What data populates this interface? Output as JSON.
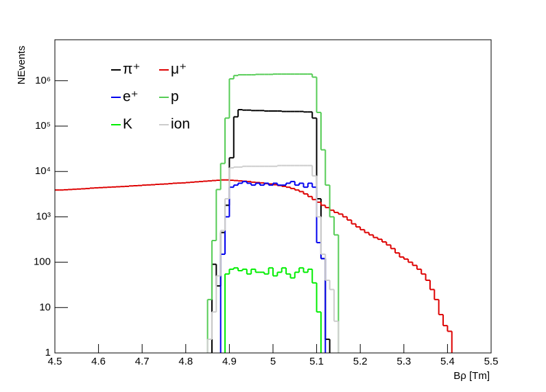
{
  "chart_data": {
    "type": "histogram",
    "xlabel": "Bρ [Tm]",
    "ylabel": "NEvents",
    "xlim": [
      4.5,
      5.5
    ],
    "xticks": [
      4.5,
      4.6,
      4.7,
      4.8,
      4.9,
      5,
      5.1,
      5.2,
      5.3,
      5.4,
      5.5
    ],
    "ylim": [
      1,
      8000000
    ],
    "yticks": [
      1,
      10,
      100,
      {
        "value": 1000,
        "label": "10³"
      },
      {
        "value": 10000,
        "label": "10⁴"
      },
      {
        "value": 100000,
        "label": "10⁵"
      },
      {
        "value": 1000000,
        "label": "10⁶"
      }
    ],
    "log_y": true,
    "legend": "upper left",
    "series": [
      {
        "name": "π⁺",
        "color": "#000000",
        "bins": [
          4.86,
          4.87,
          4.88,
          4.89,
          4.9,
          4.91,
          4.92,
          4.93,
          4.94,
          4.95,
          4.96,
          4.97,
          4.98,
          4.99,
          5,
          5.01,
          5.02,
          5.03,
          5.04,
          5.05,
          5.06,
          5.07,
          5.08,
          5.09,
          5.1,
          5.11,
          5.12,
          5.13
        ],
        "values": [
          90,
          30,
          450,
          1800,
          20000,
          160000,
          230000,
          225000,
          225000,
          220000,
          220000,
          220000,
          215000,
          215000,
          215000,
          215000,
          210000,
          210000,
          210000,
          210000,
          210000,
          205000,
          205000,
          150000,
          2500,
          120,
          2
        ]
      },
      {
        "name": "μ⁺",
        "color": "#dd0000",
        "bins": [
          4.5,
          4.51,
          4.52,
          4.53,
          4.54,
          4.55,
          4.56,
          4.57,
          4.58,
          4.59,
          4.6,
          4.61,
          4.62,
          4.63,
          4.64,
          4.65,
          4.66,
          4.67,
          4.68,
          4.69,
          4.7,
          4.71,
          4.72,
          4.73,
          4.74,
          4.75,
          4.76,
          4.77,
          4.78,
          4.79,
          4.8,
          4.81,
          4.82,
          4.83,
          4.84,
          4.85,
          4.86,
          4.87,
          4.88,
          4.89,
          4.9,
          4.91,
          4.92,
          4.93,
          4.94,
          4.95,
          4.96,
          4.97,
          4.98,
          4.99,
          5,
          5.01,
          5.02,
          5.03,
          5.04,
          5.05,
          5.06,
          5.07,
          5.08,
          5.09,
          5.1,
          5.11,
          5.12,
          5.13,
          5.14,
          5.15,
          5.16,
          5.17,
          5.18,
          5.19,
          5.2,
          5.21,
          5.22,
          5.23,
          5.24,
          5.25,
          5.26,
          5.27,
          5.28,
          5.29,
          5.3,
          5.31,
          5.32,
          5.33,
          5.34,
          5.35,
          5.36,
          5.37,
          5.38,
          5.39,
          5.4,
          5.41
        ],
        "values": [
          3900,
          3900,
          3950,
          4000,
          4050,
          4100,
          4150,
          4200,
          4300,
          4350,
          4400,
          4450,
          4500,
          4550,
          4600,
          4650,
          4700,
          4800,
          4850,
          4900,
          5000,
          5050,
          5100,
          5200,
          5250,
          5300,
          5400,
          5500,
          5550,
          5600,
          5700,
          5800,
          5900,
          6000,
          6100,
          6200,
          6300,
          6400,
          6500,
          6500,
          6400,
          6300,
          6200,
          6100,
          6000,
          5800,
          5700,
          5600,
          5400,
          5300,
          5100,
          4900,
          4700,
          4500,
          4200,
          3900,
          3600,
          3200,
          2800,
          2400,
          2100,
          1800,
          1600,
          1400,
          1250,
          1150,
          1000,
          850,
          700,
          600,
          520,
          450,
          400,
          350,
          320,
          280,
          240,
          200,
          160,
          130,
          117,
          100,
          85,
          70,
          55,
          40,
          25,
          15,
          7,
          4,
          3
        ]
      },
      {
        "name": "e⁺",
        "color": "#0000ee",
        "bins": [
          4.88,
          4.89,
          4.9,
          4.91,
          4.92,
          4.93,
          4.94,
          4.95,
          4.96,
          4.97,
          4.98,
          4.99,
          5,
          5.01,
          5.02,
          5.03,
          5.04,
          5.05,
          5.06,
          5.07,
          5.08,
          5.09,
          5.1,
          5.11,
          5.12
        ],
        "values": [
          150,
          1000,
          4500,
          5000,
          5500,
          6000,
          5500,
          5000,
          5500,
          5000,
          5500,
          5000,
          5500,
          5000,
          5000,
          5500,
          6000,
          5000,
          5500,
          4500,
          5500,
          4500,
          270,
          120
        ]
      },
      {
        "name": "p",
        "color": "#55cc55",
        "bins": [
          4.85,
          4.86,
          4.87,
          4.88,
          4.89,
          4.9,
          4.91,
          4.92,
          4.93,
          4.94,
          4.95,
          4.96,
          4.97,
          4.98,
          4.99,
          5,
          5.01,
          5.02,
          5.03,
          5.04,
          5.05,
          5.06,
          5.07,
          5.08,
          5.09,
          5.1,
          5.11,
          5.12,
          5.13,
          5.14,
          5.15
        ],
        "values": [
          15,
          300,
          4000,
          15000,
          150000,
          1100000,
          1300000,
          1350000,
          1350000,
          1350000,
          1350000,
          1380000,
          1380000,
          1380000,
          1380000,
          1400000,
          1400000,
          1400000,
          1400000,
          1400000,
          1400000,
          1400000,
          1400000,
          1400000,
          1200000,
          200000,
          30000,
          5000,
          1000,
          400
        ]
      },
      {
        "name": "K",
        "color": "#00ee00",
        "bins": [
          4.89,
          4.9,
          4.91,
          4.92,
          4.93,
          4.94,
          4.95,
          4.96,
          4.97,
          4.98,
          4.99,
          5,
          5.01,
          5.02,
          5.03,
          5.04,
          5.05,
          5.06,
          5.07,
          5.08,
          5.09,
          5.1,
          5.11
        ],
        "values": [
          55,
          70,
          75,
          65,
          70,
          55,
          70,
          60,
          60,
          55,
          75,
          50,
          60,
          75,
          55,
          45,
          60,
          75,
          60,
          70,
          35,
          8
        ]
      },
      {
        "name": "ion",
        "color": "#cccccc",
        "bins": [
          4.85,
          4.86,
          4.87,
          4.88,
          4.89,
          4.9,
          4.91,
          4.92,
          4.93,
          4.94,
          4.95,
          4.96,
          4.97,
          4.98,
          4.99,
          5,
          5.01,
          5.02,
          5.03,
          5.04,
          5.05,
          5.06,
          5.07,
          5.08,
          5.09,
          5.1,
          5.11,
          5.12,
          5.13,
          5.14,
          5.15
        ],
        "values": [
          2,
          8,
          50,
          500,
          2500,
          12000,
          12500,
          12500,
          13000,
          13000,
          13000,
          13000,
          13000,
          13000,
          13000,
          13000,
          13500,
          13500,
          13500,
          13500,
          13500,
          13500,
          13500,
          13500,
          8000,
          1000,
          150,
          40,
          25,
          5
        ]
      }
    ]
  }
}
